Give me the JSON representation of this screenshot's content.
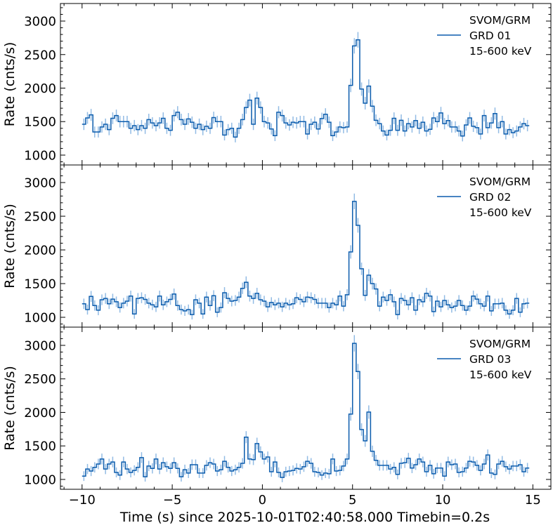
{
  "chart_data": [
    {
      "type": "line",
      "style": "step-with-errorbars",
      "legend": {
        "lines": [
          "SVOM/GRM",
          "GRD 01",
          "15-600 keV"
        ],
        "placement": "top-right"
      },
      "ylabel": "Rate (cnts/s)",
      "ylim": [
        853,
        3262
      ],
      "yticks": [
        1000,
        1500,
        2000,
        2500,
        3000
      ],
      "x_start": -10,
      "bin": 0.2,
      "values": [
        1460,
        1555,
        1600,
        1345,
        1345,
        1420,
        1460,
        1380,
        1550,
        1590,
        1500,
        1500,
        1500,
        1400,
        1440,
        1380,
        1440,
        1400,
        1530,
        1480,
        1440,
        1480,
        1550,
        1400,
        1370,
        1590,
        1640,
        1530,
        1460,
        1540,
        1490,
        1400,
        1460,
        1380,
        1430,
        1400,
        1560,
        1500,
        1500,
        1300,
        1380,
        1400,
        1270,
        1400,
        1530,
        1710,
        1820,
        1460,
        1850,
        1710,
        1500,
        1480,
        1390,
        1290,
        1640,
        1590,
        1480,
        1450,
        1490,
        1480,
        1500,
        1500,
        1315,
        1460,
        1490,
        1390,
        1545,
        1610,
        1490,
        1290,
        1345,
        1420,
        1410,
        1420,
        2040,
        2630,
        2720,
        1985,
        1775,
        2030,
        1730,
        1520,
        1470,
        1360,
        1300,
        1370,
        1550,
        1370,
        1520,
        1360,
        1470,
        1420,
        1515,
        1400,
        1490,
        1360,
        1385,
        1555,
        1500,
        1630,
        1470,
        1515,
        1420,
        1420,
        1360,
        1285,
        1450,
        1555,
        1430,
        1410,
        1315,
        1590,
        1410,
        1480,
        1620,
        1410,
        1500,
        1315,
        1380,
        1335,
        1360,
        1420,
        1470,
        1440
      ]
    },
    {
      "type": "line",
      "style": "step-with-errorbars",
      "legend": {
        "lines": [
          "SVOM/GRM",
          "GRD 02",
          "15-600 keV"
        ],
        "placement": "top-right"
      },
      "ylabel": "Rate (cnts/s)",
      "ylim": [
        854,
        3261
      ],
      "yticks": [
        1000,
        1500,
        2000,
        2500,
        3000
      ],
      "x_start": -10,
      "bin": 0.2,
      "values": [
        1200,
        1115,
        1310,
        1175,
        1105,
        1260,
        1280,
        1200,
        1270,
        1230,
        1145,
        1210,
        1240,
        1315,
        1050,
        1280,
        1290,
        1265,
        1210,
        1185,
        1155,
        1315,
        1185,
        1230,
        1265,
        1345,
        1175,
        1115,
        1095,
        1115,
        1040,
        1260,
        1210,
        1050,
        1300,
        1175,
        1320,
        1075,
        1145,
        1365,
        1280,
        1240,
        1250,
        1300,
        1430,
        1520,
        1315,
        1280,
        1355,
        1260,
        1240,
        1155,
        1220,
        1185,
        1210,
        1155,
        1210,
        1185,
        1200,
        1290,
        1265,
        1230,
        1300,
        1290,
        1265,
        1210,
        1210,
        1210,
        1145,
        1210,
        1185,
        1315,
        1165,
        1335,
        1970,
        2720,
        2365,
        1720,
        1325,
        1625,
        1500,
        1420,
        1165,
        1300,
        1250,
        1335,
        1230,
        1040,
        1280,
        1250,
        1185,
        1290,
        1105,
        1260,
        1230,
        1355,
        1315,
        1085,
        1240,
        1155,
        1250,
        1185,
        1145,
        1165,
        1250,
        1175,
        1105,
        1165,
        1315,
        1270,
        1200,
        1165,
        1315,
        1095,
        1200,
        1200,
        1210,
        1105,
        1050,
        1105,
        1280,
        1075,
        1200,
        1210
      ]
    },
    {
      "type": "line",
      "style": "step-with-errorbars",
      "legend": {
        "lines": [
          "SVOM/GRM",
          "GRD 03",
          "15-600 keV"
        ],
        "placement": "top-right"
      },
      "ylabel": "Rate (cnts/s)",
      "ylim": [
        853,
        3272
      ],
      "yticks": [
        1000,
        1500,
        2000,
        2500,
        3000
      ],
      "x_start": -10,
      "bin": 0.2,
      "values": [
        1050,
        1155,
        1125,
        1180,
        1230,
        1305,
        1155,
        1230,
        1260,
        1105,
        1065,
        1260,
        1155,
        1105,
        1135,
        1180,
        1325,
        1040,
        1200,
        1165,
        1305,
        1155,
        1250,
        1190,
        1165,
        1250,
        1165,
        1040,
        1145,
        1095,
        1220,
        1220,
        1095,
        1095,
        1210,
        1250,
        1230,
        1125,
        1145,
        1270,
        1180,
        1125,
        1145,
        1180,
        1240,
        1630,
        1305,
        1295,
        1535,
        1410,
        1305,
        1335,
        1115,
        1260,
        1105,
        1030,
        1115,
        1125,
        1135,
        1165,
        1155,
        1190,
        1270,
        1240,
        1115,
        1105,
        1065,
        1095,
        1085,
        1305,
        1125,
        1135,
        1200,
        1305,
        1975,
        3030,
        2610,
        1745,
        1575,
        2005,
        1420,
        1285,
        1210,
        1210,
        1210,
        1155,
        1180,
        1075,
        1240,
        1250,
        1315,
        1170,
        1220,
        1305,
        1260,
        1115,
        1210,
        1085,
        1170,
        1170,
        1050,
        1260,
        1220,
        1230,
        1105,
        1115,
        1170,
        1270,
        1260,
        1210,
        1135,
        1230,
        1365,
        1095,
        1075,
        1230,
        1270,
        1190,
        1155,
        1200,
        1200,
        1220,
        1115,
        1170
      ]
    }
  ],
  "xaxis": {
    "label": "Time (s) since 2025-10-01T02:40:58.000 Timebin=0.2s",
    "xlim": [
      -11.2,
      16.0
    ],
    "xticks": [
      -10,
      -5,
      0,
      5,
      10,
      15
    ],
    "xtick_labels": [
      "−10",
      "−5",
      "0",
      "5",
      "10",
      "15"
    ]
  },
  "colors": {
    "line": "#0b5cad",
    "errorbar": "#7fb0e0",
    "axis": "#000000"
  }
}
